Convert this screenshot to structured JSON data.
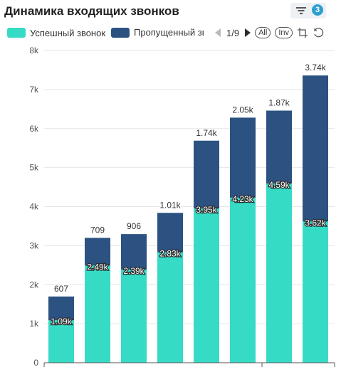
{
  "header": {
    "title": "Динамика входящих звонков",
    "filter_count": "3"
  },
  "legend": {
    "items": [
      {
        "label": "Успешный звонок",
        "color": "#36dbc6"
      },
      {
        "label": "Пропущенный звонок",
        "color": "#2c5282"
      }
    ],
    "page": "1/9",
    "all_label": "All",
    "inv_label": "Inv"
  },
  "chart_data": {
    "type": "bar",
    "stacked": true,
    "categories": [
      "",
      "",
      "",
      "",
      "",
      "",
      "",
      ""
    ],
    "series": [
      {
        "name": "Успешный звонок",
        "color": "#36dbc6",
        "values": [
          1090,
          2490,
          2390,
          2830,
          3950,
          4230,
          4590,
          3620
        ],
        "labels": [
          "1.09k",
          "2.49k",
          "2.39k",
          "2.83k",
          "3.95k",
          "4.23k",
          "4.59k",
          "3.62k"
        ]
      },
      {
        "name": "Пропущенный звонок",
        "color": "#2c5282",
        "values": [
          607,
          709,
          906,
          1010,
          1740,
          2050,
          1870,
          3740
        ],
        "labels": [
          "607",
          "709",
          "906",
          "1.01k",
          "1.74k",
          "2.05k",
          "1.87k",
          "3.74k"
        ]
      }
    ],
    "ylim": [
      0,
      8000
    ],
    "yticks": [
      0,
      1000,
      2000,
      3000,
      4000,
      5000,
      6000,
      7000,
      8000
    ],
    "ytick_labels": [
      "0",
      "1k",
      "2k",
      "3k",
      "4k",
      "5k",
      "6k",
      "7k",
      "8k"
    ],
    "grid": true,
    "legend_position": "top"
  }
}
